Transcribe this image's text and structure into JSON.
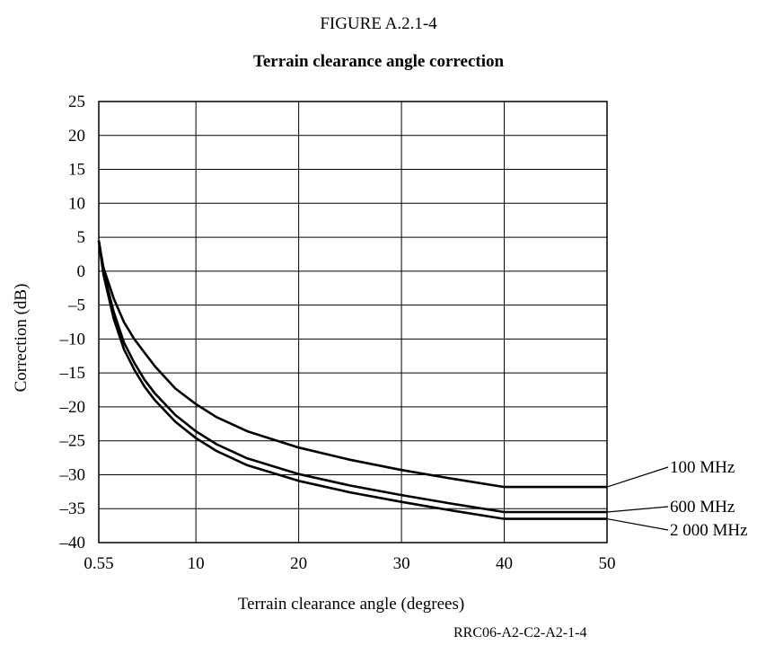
{
  "figure_label": "FIGURE A.2.1-4",
  "reference_code": "RRC06-A2-C2-A2-1-4",
  "chart_data": {
    "type": "line",
    "title": "Terrain clearance angle correction",
    "xlabel": "Terrain clearance angle (degrees)",
    "ylabel": "Correction (dB)",
    "xlim": [
      0.55,
      50
    ],
    "ylim": [
      -40,
      25
    ],
    "x_ticks": [
      0.55,
      10,
      20,
      30,
      40,
      50
    ],
    "x_tick_labels": [
      "0.55",
      "10",
      "20",
      "30",
      "40",
      "50"
    ],
    "y_ticks": [
      25,
      20,
      15,
      10,
      5,
      0,
      -5,
      -10,
      -15,
      -20,
      -25,
      -30,
      -35,
      -40
    ],
    "y_tick_labels": [
      "25",
      "20",
      "15",
      "10",
      "5",
      "0",
      "–5",
      "–10",
      "–15",
      "–20",
      "–25",
      "–30",
      "–35",
      "–40"
    ],
    "grid": true,
    "legend": "labels at right end of curves",
    "series": [
      {
        "name": "100 MHz",
        "x": [
          0.55,
          1,
          2,
          3,
          4,
          5,
          6,
          8,
          10,
          12,
          15,
          20,
          25,
          30,
          35,
          40,
          45,
          50
        ],
        "y": [
          4.5,
          0.5,
          -4,
          -7.5,
          -10,
          -12,
          -14,
          -17.3,
          -19.6,
          -21.5,
          -23.6,
          -26.0,
          -27.8,
          -29.3,
          -30.6,
          -31.8,
          -31.8,
          -31.8
        ]
      },
      {
        "name": "600 MHz",
        "x": [
          0.55,
          1,
          2,
          3,
          4,
          5,
          6,
          8,
          10,
          12,
          15,
          20,
          25,
          30,
          35,
          40,
          45,
          50
        ],
        "y": [
          4.5,
          0,
          -6,
          -10.5,
          -13.5,
          -16,
          -18,
          -21.2,
          -23.6,
          -25.5,
          -27.6,
          -29.9,
          -31.6,
          -33.0,
          -34.3,
          -35.5,
          -35.5,
          -35.5
        ]
      },
      {
        "name": "2 000 MHz",
        "x": [
          0.55,
          1,
          2,
          3,
          4,
          5,
          6,
          8,
          10,
          12,
          15,
          20,
          25,
          30,
          35,
          40,
          45,
          50
        ],
        "y": [
          4.5,
          -0.5,
          -7,
          -11.5,
          -14.5,
          -17,
          -19,
          -22.2,
          -24.6,
          -26.5,
          -28.6,
          -30.9,
          -32.6,
          -34.0,
          -35.3,
          -36.5,
          -36.5,
          -36.5
        ]
      }
    ]
  }
}
